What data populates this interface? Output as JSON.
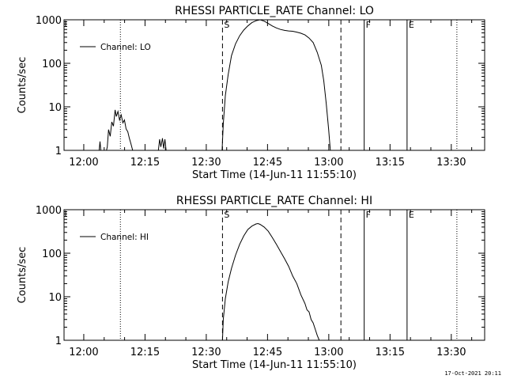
{
  "chart_data": [
    {
      "type": "line",
      "title": "RHESSI PARTICLE_RATE Channel: LO",
      "xlabel": "Start Time (14-Jun-11 11:55:10)",
      "ylabel": "Counts/sec",
      "yscale": "log",
      "ylim": [
        1,
        1000
      ],
      "xlim_minutes_from_start": [
        0,
        103
      ],
      "ytick_values": [
        1,
        10,
        100,
        1000
      ],
      "ytick_labels": [
        "1",
        "10",
        "100",
        "1000"
      ],
      "xtick_values": [
        4.83,
        19.83,
        34.83,
        49.83,
        64.83,
        79.83,
        94.83
      ],
      "xtick_labels": [
        "12:00",
        "12:15",
        "12:30",
        "12:45",
        "13:00",
        "13:15",
        "13:30"
      ],
      "legend": {
        "placement": "top-left",
        "entries": [
          "Channel: LO"
        ]
      },
      "markers": [
        {
          "label": "S",
          "x": 38.8,
          "style": "dashed"
        },
        {
          "label": "",
          "x": 67.8,
          "style": "dashed"
        },
        {
          "label": "F",
          "x": 73.5,
          "style": "solid"
        },
        {
          "label": "E",
          "x": 84.0,
          "style": "solid"
        },
        {
          "label": "",
          "x": 13.8,
          "style": "dotted"
        },
        {
          "label": "",
          "x": 96.2,
          "style": "dotted"
        }
      ],
      "series": [
        {
          "segments": [
            [
              [
                8.6,
                1
              ],
              [
                8.8,
                1.6
              ],
              [
                9.0,
                1
              ]
            ],
            [
              [
                10.4,
                1
              ],
              [
                10.6,
                1.2
              ],
              [
                10.9,
                3
              ],
              [
                11.3,
                2.1
              ],
              [
                11.7,
                4.5
              ],
              [
                12.1,
                3.6
              ],
              [
                12.5,
                8.5
              ],
              [
                12.8,
                6
              ],
              [
                13.2,
                7.8
              ],
              [
                13.6,
                5
              ],
              [
                14.0,
                6.5
              ],
              [
                14.4,
                4.3
              ],
              [
                14.8,
                5
              ],
              [
                15.2,
                3.1
              ],
              [
                15.6,
                2.7
              ],
              [
                16.0,
                1.9
              ],
              [
                16.4,
                1.4
              ],
              [
                16.8,
                1
              ]
            ],
            [
              [
                23.1,
                1
              ],
              [
                23.4,
                1.8
              ],
              [
                23.7,
                1.2
              ],
              [
                24.1,
                1.9
              ],
              [
                24.4,
                1.1
              ],
              [
                24.7,
                1.8
              ],
              [
                25.0,
                1
              ]
            ],
            [
              [
                38.7,
                1
              ],
              [
                39.0,
                4
              ],
              [
                39.5,
                18
              ],
              [
                40.2,
                55
              ],
              [
                41.0,
                150
              ],
              [
                42.0,
                280
              ],
              [
                43.0,
                430
              ],
              [
                44.0,
                580
              ],
              [
                45.0,
                720
              ],
              [
                46.0,
                860
              ],
              [
                47.0,
                950
              ],
              [
                48.0,
                1000
              ],
              [
                49.0,
                930
              ],
              [
                50.0,
                820
              ],
              [
                51.0,
                720
              ],
              [
                52.0,
                650
              ],
              [
                53.0,
                600
              ],
              [
                54.0,
                570
              ],
              [
                55.0,
                555
              ],
              [
                56.0,
                545
              ],
              [
                57.0,
                520
              ],
              [
                58.0,
                490
              ],
              [
                59.0,
                450
              ],
              [
                60.0,
                380
              ],
              [
                61.0,
                300
              ],
              [
                62.0,
                180
              ],
              [
                63.0,
                90
              ],
              [
                63.6,
                40
              ],
              [
                64.2,
                12
              ],
              [
                64.8,
                3
              ],
              [
                65.2,
                1
              ]
            ]
          ]
        }
      ]
    },
    {
      "type": "line",
      "title": "RHESSI PARTICLE_RATE Channel: HI",
      "xlabel": "Start Time (14-Jun-11 11:55:10)",
      "ylabel": "Counts/sec",
      "yscale": "log",
      "ylim": [
        1,
        1000
      ],
      "xlim_minutes_from_start": [
        0,
        103
      ],
      "ytick_values": [
        1,
        10,
        100,
        1000
      ],
      "ytick_labels": [
        "1",
        "10",
        "100",
        "1000"
      ],
      "xtick_values": [
        4.83,
        19.83,
        34.83,
        49.83,
        64.83,
        79.83,
        94.83
      ],
      "xtick_labels": [
        "12:00",
        "12:15",
        "12:30",
        "12:45",
        "13:00",
        "13:15",
        "13:30"
      ],
      "legend": {
        "placement": "top-left",
        "entries": [
          "Channel: HI"
        ]
      },
      "markers": [
        {
          "label": "S",
          "x": 38.8,
          "style": "dashed"
        },
        {
          "label": "",
          "x": 67.8,
          "style": "dashed"
        },
        {
          "label": "F",
          "x": 73.5,
          "style": "solid"
        },
        {
          "label": "E",
          "x": 84.0,
          "style": "solid"
        },
        {
          "label": "",
          "x": 13.8,
          "style": "dotted"
        },
        {
          "label": "",
          "x": 96.2,
          "style": "dotted"
        }
      ],
      "series": [
        {
          "segments": [
            [
              [
                38.8,
                1
              ],
              [
                39.0,
                3
              ],
              [
                39.5,
                9
              ],
              [
                40.2,
                22
              ],
              [
                41.0,
                45
              ],
              [
                42.0,
                90
              ],
              [
                43.0,
                160
              ],
              [
                44.0,
                250
              ],
              [
                45.0,
                350
              ],
              [
                46.0,
                420
              ],
              [
                47.0,
                470
              ],
              [
                47.5,
                480
              ],
              [
                48.0,
                460
              ],
              [
                49.0,
                400
              ],
              [
                50.0,
                320
              ],
              [
                51.0,
                230
              ],
              [
                52.0,
                160
              ],
              [
                53.0,
                110
              ],
              [
                54.0,
                75
              ],
              [
                55.0,
                50
              ],
              [
                56.0,
                30
              ],
              [
                57.0,
                20
              ],
              [
                58.0,
                11
              ],
              [
                59.0,
                7
              ],
              [
                59.5,
                5
              ],
              [
                60.0,
                4.5
              ],
              [
                60.5,
                3
              ],
              [
                61.0,
                2.5
              ],
              [
                61.5,
                1.8
              ],
              [
                62.0,
                1.3
              ],
              [
                62.5,
                1
              ]
            ]
          ]
        }
      ]
    }
  ],
  "footer": {
    "timestamp": "17-Oct-2021 20:11"
  }
}
